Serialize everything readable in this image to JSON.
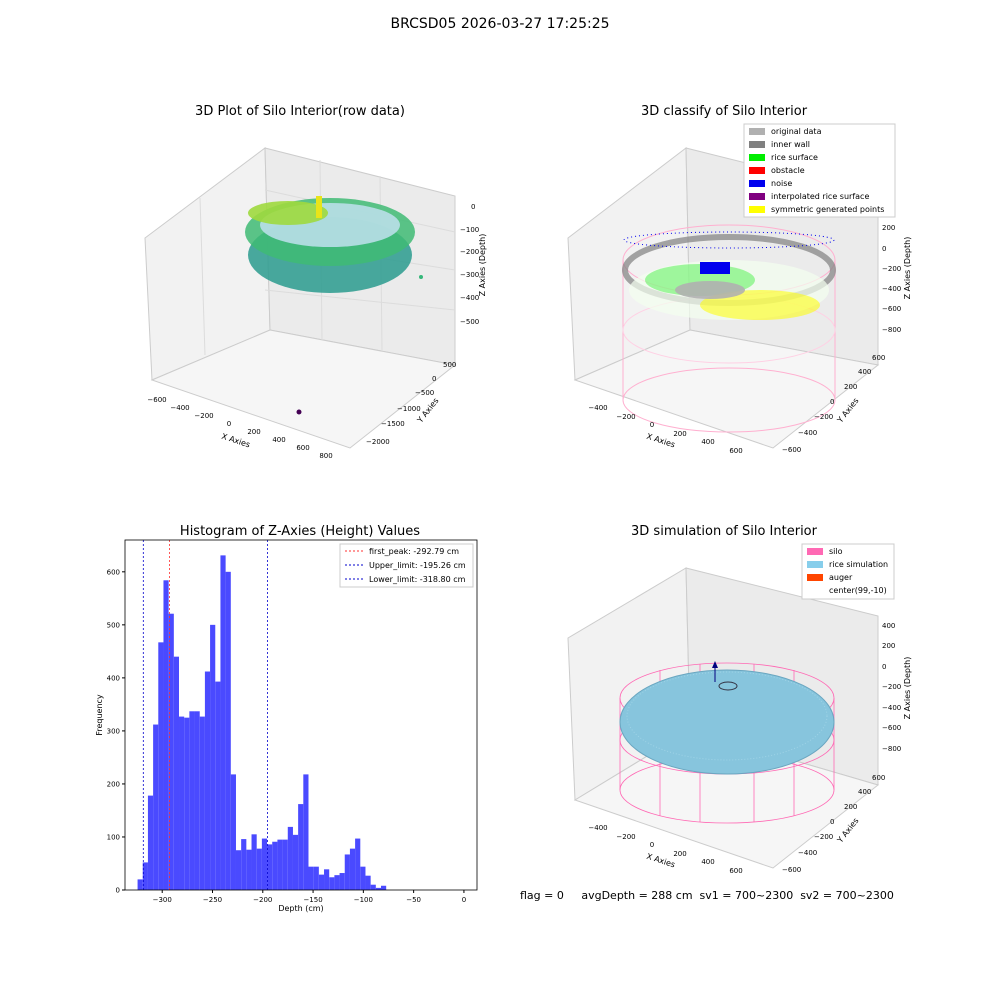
{
  "suptitle": "BRCSD05 2026-03-27 17:25:25",
  "footer": "flag = 0     avgDepth = 288 cm  sv1 = 700~2300  sv2 = 700~2300",
  "chart_data": [
    {
      "type": "scatter",
      "title": "3D Plot of Silo Interior(row data)",
      "xlabel": "X Axies",
      "ylabel": "Y Axies",
      "zlabel": "Z Axies (Depth)",
      "xticks": [
        "−600",
        "−400",
        "−200",
        "0",
        "200",
        "400",
        "600",
        "800"
      ],
      "yticks": [
        "500",
        "0",
        "−500",
        "−1000",
        "−1500",
        "−2000"
      ],
      "zticks": [
        "0",
        "−100",
        "−200",
        "−300",
        "−400",
        "−500"
      ],
      "colormap": "viridis"
    },
    {
      "type": "scatter",
      "title": "3D classify of Silo Interior",
      "xlabel": "X Axies",
      "ylabel": "Y Axies",
      "zlabel": "Z Axies (Depth)",
      "xticks": [
        "−400",
        "−200",
        "0",
        "200",
        "400",
        "600"
      ],
      "yticks": [
        "600",
        "400",
        "200",
        "0",
        "−200",
        "−400",
        "−600"
      ],
      "zticks": [
        "200",
        "0",
        "−200",
        "−400",
        "−600",
        "−800"
      ],
      "legend": [
        {
          "label": "original data",
          "color": "#b0b0b0"
        },
        {
          "label": "inner wall",
          "color": "#808080"
        },
        {
          "label": "rice surface",
          "color": "#00ee00"
        },
        {
          "label": "obstacle",
          "color": "#ff0000"
        },
        {
          "label": "noise",
          "color": "#0000ee"
        },
        {
          "label": "interpolated rice surface",
          "color": "#800080"
        },
        {
          "label": "symmetric generated points",
          "color": "#ffff00"
        }
      ]
    },
    {
      "type": "bar",
      "title": "Histogram of Z-Axies (Height) Values",
      "xlabel": "Depth (cm)",
      "ylabel": "Frequency",
      "xlim": [
        -337,
        13
      ],
      "ylim": [
        0,
        660
      ],
      "bin_width": 5.15,
      "bin_start": -324.5,
      "xticks": [
        -300,
        -250,
        -200,
        -150,
        -100,
        -50,
        0
      ],
      "xtick_labels": [
        "−300",
        "−250",
        "−200",
        "−150",
        "−100",
        "−50",
        "0"
      ],
      "yticks": [
        0,
        100,
        200,
        300,
        400,
        500,
        600
      ],
      "values": [
        20,
        52,
        178,
        312,
        467,
        584,
        521,
        440,
        327,
        325,
        337,
        337,
        327,
        412,
        500,
        393,
        631,
        600,
        218,
        75,
        96,
        76,
        105,
        78,
        97,
        86,
        91,
        95,
        95,
        119,
        104,
        162,
        218,
        44,
        44,
        29,
        39,
        24,
        28,
        32,
        67,
        78,
        97,
        44,
        27,
        10,
        4,
        8
      ],
      "bar_color": "#4a4aff",
      "lines": [
        {
          "label": "first_peak: -292.79 cm",
          "x": -292.79,
          "color": "#ff3030"
        },
        {
          "label": "Upper_limit: -195.26 cm",
          "x": -195.26,
          "color": "#0000cc"
        },
        {
          "label": "Lower_limit: -318.80 cm",
          "x": -318.8,
          "color": "#0000cc"
        }
      ]
    },
    {
      "type": "scatter",
      "title": "3D simulation of Silo Interior",
      "xlabel": "X Axies",
      "ylabel": "Y Axies",
      "zlabel": "Z Axies (Depth)",
      "xticks": [
        "−400",
        "−200",
        "0",
        "200",
        "400",
        "600"
      ],
      "yticks": [
        "600",
        "400",
        "200",
        "0",
        "−200",
        "−400",
        "−600"
      ],
      "zticks": [
        "400",
        "200",
        "0",
        "−200",
        "−400",
        "−600",
        "−800"
      ],
      "legend": [
        {
          "label": "silo",
          "color": "#ff69b4"
        },
        {
          "label": "rice simulation",
          "color": "#87ceeb"
        },
        {
          "label": "auger",
          "color": "#ff4500"
        },
        {
          "label": "center(99,-10)",
          "color": ""
        }
      ]
    }
  ]
}
